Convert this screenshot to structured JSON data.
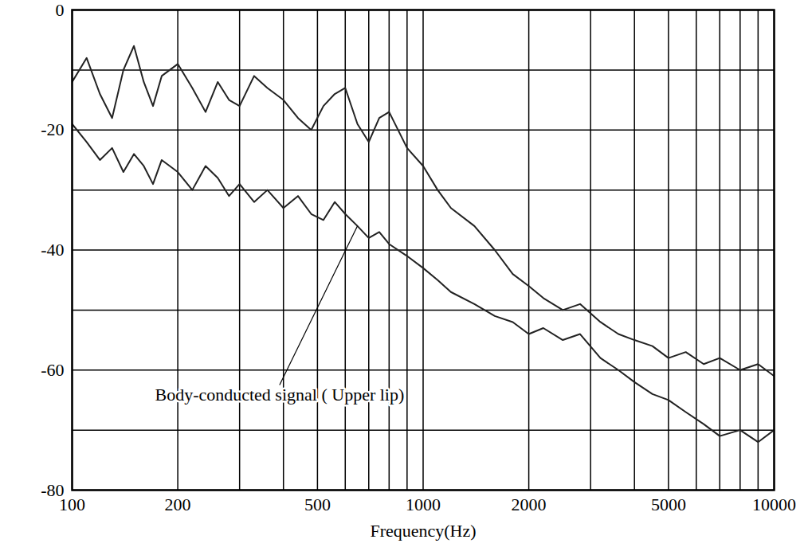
{
  "chart_data": {
    "type": "line",
    "x_label": "Frequency(Hz)",
    "log": "x",
    "grid": true,
    "xlim": [
      100,
      10000
    ],
    "xticks": [
      100,
      200,
      500,
      1000,
      2000,
      5000,
      10000
    ],
    "ylim": [
      -80,
      0
    ],
    "yticks": [
      -80,
      -60,
      -40,
      -20,
      0
    ],
    "x": [
      100,
      110,
      120,
      130,
      140,
      150,
      160,
      170,
      180,
      200,
      220,
      240,
      260,
      280,
      300,
      330,
      360,
      400,
      440,
      480,
      520,
      560,
      600,
      650,
      700,
      750,
      800,
      900,
      1000,
      1100,
      1200,
      1400,
      1600,
      1800,
      2000,
      2200,
      2500,
      2800,
      3200,
      3600,
      4000,
      4500,
      5000,
      5600,
      6300,
      7000,
      8000,
      9000,
      10000
    ],
    "series": [
      {
        "color": "#222222",
        "line_style": "solid",
        "values": [
          -12,
          -8,
          -14,
          -18,
          -10,
          -6,
          -12,
          -16,
          -11,
          -9,
          -13,
          -17,
          -12,
          -15,
          -16,
          -11,
          -13,
          -15,
          -18,
          -20,
          -16,
          -14,
          -13,
          -19,
          -22,
          -18,
          -17,
          -23,
          -26,
          -30,
          -33,
          -36,
          -40,
          -44,
          -46,
          -48,
          -50,
          -49,
          -52,
          -54,
          -55,
          -56,
          -58,
          -57,
          -59,
          -58,
          -60,
          -59,
          -61
        ]
      },
      {
        "color": "#222222",
        "line_style": "solid",
        "values": [
          -19,
          -22,
          -25,
          -23,
          -27,
          -24,
          -26,
          -29,
          -25,
          -27,
          -30,
          -26,
          -28,
          -31,
          -29,
          -32,
          -30,
          -33,
          -31,
          -34,
          -35,
          -32,
          -34,
          -36,
          -38,
          -37,
          -39,
          -41,
          -43,
          -45,
          -47,
          -49,
          -51,
          -52,
          -54,
          -53,
          -55,
          -54,
          -58,
          -60,
          -62,
          -64,
          -65,
          -67,
          -69,
          -71,
          -70,
          -72,
          -70
        ]
      }
    ],
    "annotations": [
      {
        "text": "Body-conducted signal ( Upper lip)",
        "x": 390,
        "y": -62.5,
        "x_end": 650,
        "y_end": -36
      }
    ]
  }
}
